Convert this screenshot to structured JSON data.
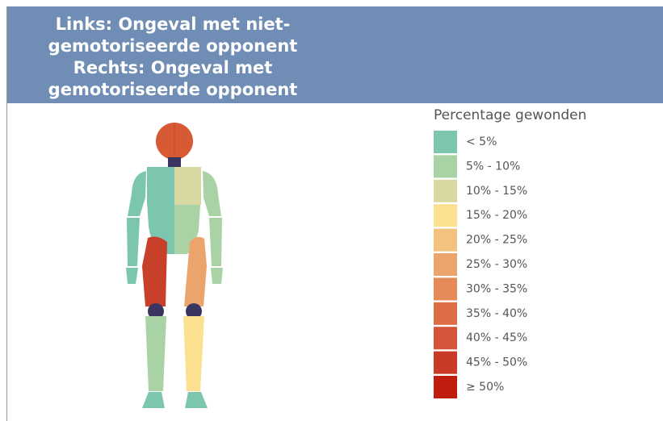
{
  "header": {
    "title": [
      "Links: Ongeval met niet-",
      "gemotoriseerde opponent",
      "Rechts: Ongeval met",
      "gemotoriseerde opponent"
    ]
  },
  "legend": {
    "title": "Percentage gewonden",
    "items": [
      {
        "label": "< 5%",
        "color": "#7cc6b0"
      },
      {
        "label": "5% - 10%",
        "color": "#a9d3a4"
      },
      {
        "label": "10% - 15%",
        "color": "#d8d9a2"
      },
      {
        "label": "15% - 20%",
        "color": "#fbe08f"
      },
      {
        "label": "20% - 25%",
        "color": "#f3c27e"
      },
      {
        "label": "25% - 30%",
        "color": "#eba56c"
      },
      {
        "label": "30% - 35%",
        "color": "#e48b58"
      },
      {
        "label": "35% - 40%",
        "color": "#dd6d45"
      },
      {
        "label": "40% - 45%",
        "color": "#d4553a"
      },
      {
        "label": "45% - 50%",
        "color": "#ca3b27"
      },
      {
        "label": "≥ 50%",
        "color": "#c01d0e"
      }
    ]
  }
}
